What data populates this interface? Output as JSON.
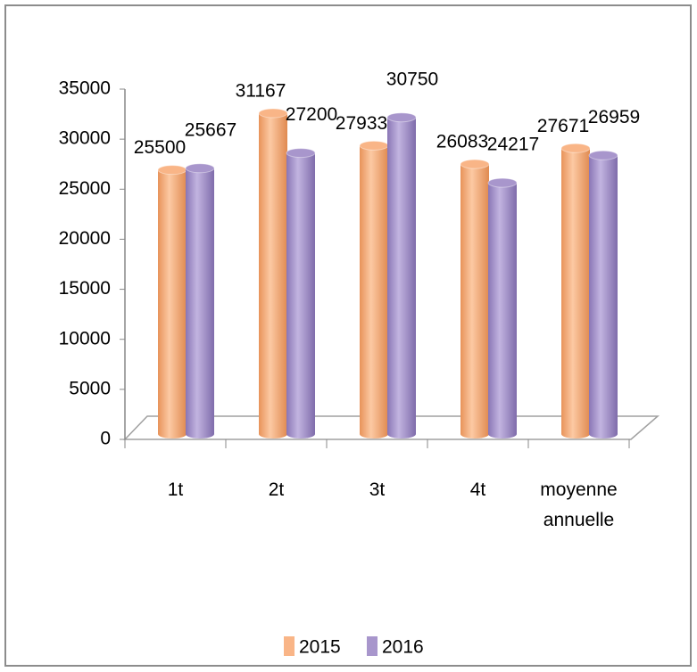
{
  "chart_data": {
    "type": "bar",
    "categories": [
      "1t",
      "2t",
      "3t",
      "4t",
      "moyenne annuelle"
    ],
    "series": [
      {
        "name": "2015",
        "color": "#f9b587",
        "values": [
          25500,
          31167,
          27933,
          26083,
          27671
        ]
      },
      {
        "name": "2016",
        "color": "#a896cc",
        "values": [
          25667,
          27200,
          30750,
          24217,
          26959
        ]
      }
    ],
    "ylim": [
      0,
      35000
    ],
    "yticks": [
      0,
      5000,
      10000,
      15000,
      20000,
      25000,
      30000,
      35000
    ],
    "legend": "bottom"
  }
}
